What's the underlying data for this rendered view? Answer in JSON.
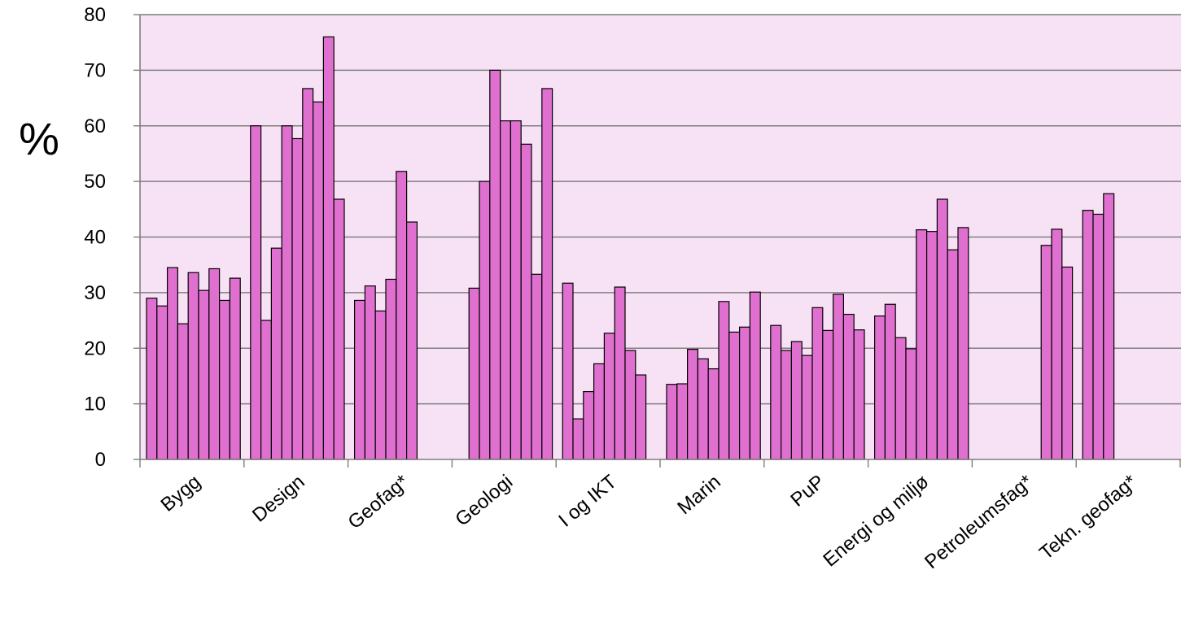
{
  "chart_data": {
    "type": "bar",
    "ylabel": "%",
    "ylim": [
      0,
      80
    ],
    "yticks": [
      "0",
      "10",
      "20",
      "30",
      "40",
      "50",
      "60",
      "70",
      "80"
    ],
    "grid": true,
    "bar_color": "#e070cf",
    "plot_bg": "#f7e2f5",
    "categories": [
      "Bygg",
      "Design",
      "Geofag*",
      "Geologi",
      "I og IKT",
      "Marin",
      "PuP",
      "Energi og miljø",
      "Petroleumsfag*",
      "Tekn. geofag*"
    ],
    "groups": [
      [
        29,
        27.6,
        34.5,
        24.4,
        33.6,
        30.4,
        34.3,
        28.6,
        32.6
      ],
      [
        60,
        25,
        38,
        60,
        57.7,
        66.7,
        64.3,
        76,
        46.8
      ],
      [
        28.6,
        31.2,
        26.7,
        32.4,
        51.8,
        42.7
      ],
      [
        30.8,
        50,
        70,
        60.9,
        60.9,
        56.7,
        33.3,
        66.7
      ],
      [
        31.7,
        7.3,
        12.2,
        17.2,
        22.7,
        31,
        19.6,
        15.2
      ],
      [
        13.5,
        13.6,
        19.8,
        18.1,
        16.3,
        28.4,
        22.9,
        23.8,
        30.1
      ],
      [
        24.1,
        19.6,
        21.2,
        18.7,
        27.3,
        23.2,
        29.7,
        26.1,
        23.3
      ],
      [
        25.8,
        27.9,
        21.9,
        19.9,
        41.3,
        41,
        46.8,
        37.7,
        41.7
      ],
      [
        38.5,
        41.4,
        34.6
      ],
      [
        44.8,
        44.1,
        47.8
      ]
    ],
    "group_starts": [
      0,
      0,
      0,
      1,
      0,
      0,
      0,
      0,
      6,
      0
    ]
  }
}
